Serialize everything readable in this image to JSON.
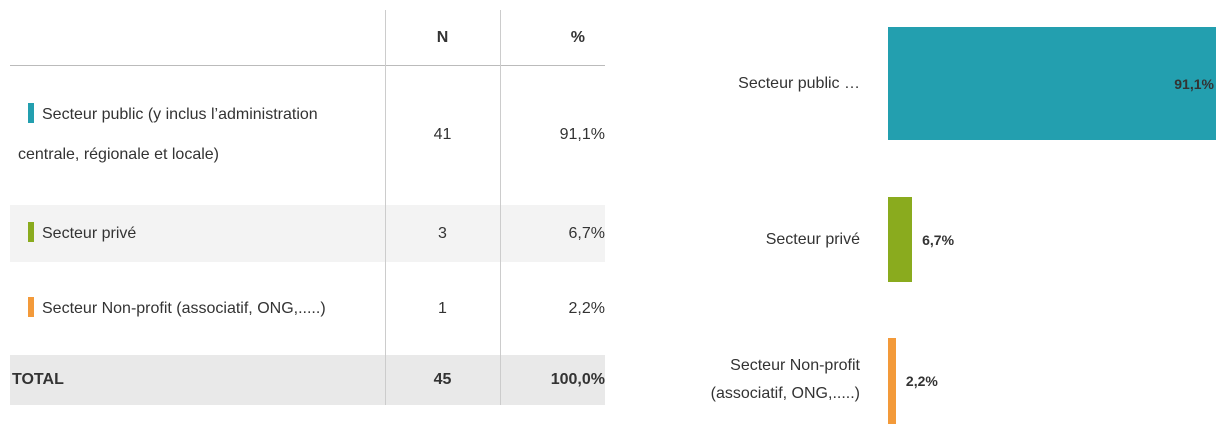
{
  "table": {
    "header": [
      "N",
      "%"
    ],
    "rows": [
      {
        "label": "Secteur public (y inclus l’administration centrale, régionale et locale)",
        "color": "#239faf",
        "n": "41",
        "pct": "91,1%"
      },
      {
        "label": "Secteur privé",
        "color": "#8aab1e",
        "n": "3",
        "pct": "6,7%"
      },
      {
        "label": "Secteur Non-profit (associatif, ONG,.....)",
        "color": "#f39a3a",
        "n": "1",
        "pct": "2,2%"
      }
    ],
    "total": {
      "label": "TOTAL",
      "n": "45",
      "pct": "100,0%"
    }
  },
  "chart_data": {
    "type": "bar",
    "orientation": "horizontal",
    "categories": [
      "Secteur public …",
      "Secteur privé",
      "Secteur Non-profit (associatif, ONG,.....)"
    ],
    "values": [
      91.1,
      6.7,
      2.2
    ],
    "value_labels": [
      "91,1%",
      "6,7%",
      "2,2%"
    ],
    "colors": [
      "#239faf",
      "#8aab1e",
      "#f39a3a"
    ]
  }
}
